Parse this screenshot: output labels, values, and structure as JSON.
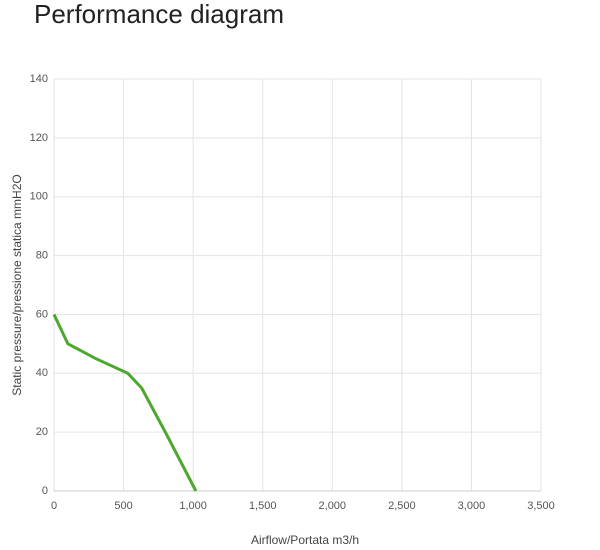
{
  "chart_data": {
    "type": "line",
    "title": "Performance diagram",
    "x_label": "Airflow/Portata m3/h",
    "y_label": "Static pressure/pressione statica mmH2O",
    "x": [
      0,
      100,
      300,
      530,
      630,
      800,
      1020
    ],
    "series": [
      {
        "color": "#4ea72e",
        "values": [
          60,
          50,
          45,
          40,
          35,
          20,
          0
        ]
      }
    ],
    "xlim": [
      0,
      3500
    ],
    "xticks": [
      0,
      500,
      {
        "value": 1000,
        "label": "1,000"
      },
      {
        "value": 1500,
        "label": "1,500"
      },
      {
        "value": 2000,
        "label": "2,000"
      },
      {
        "value": 2500,
        "label": "2,500"
      },
      {
        "value": 3000,
        "label": "3,000"
      },
      {
        "value": 3500,
        "label": "3,500"
      }
    ],
    "ylim": [
      0,
      140
    ],
    "yticks": [
      0,
      20,
      40,
      60,
      80,
      100,
      120,
      140
    ],
    "grid": true
  }
}
